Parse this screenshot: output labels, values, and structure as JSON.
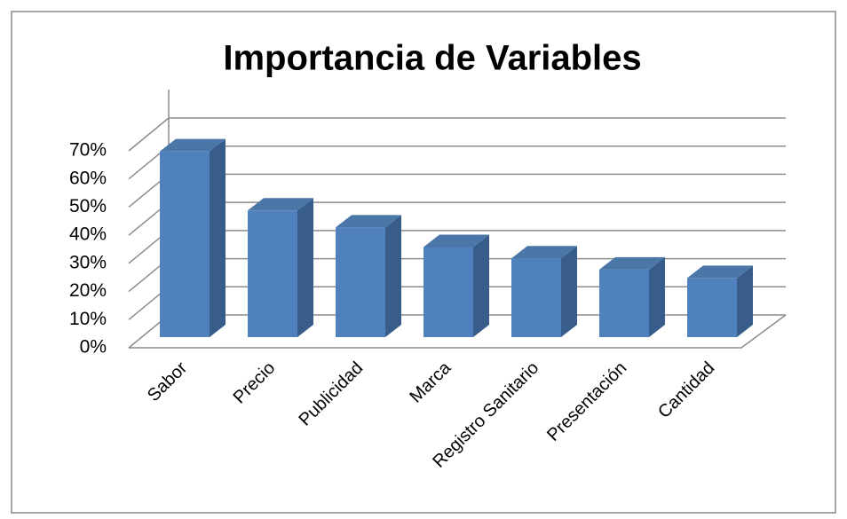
{
  "chart_data": {
    "type": "bar3d",
    "title": "Importancia de Variables",
    "categories": [
      "Sabor",
      "Precio",
      "Publicidad",
      "Marca",
      "Registro Sanitario",
      "Presentación",
      "Cantidad"
    ],
    "values": [
      66,
      45,
      39,
      32,
      28,
      24,
      21
    ],
    "color": "#4f81bd",
    "ylim": [
      0,
      70
    ],
    "yticks": [
      {
        "value": 0,
        "label": "0%"
      },
      {
        "value": 10,
        "label": "10%"
      },
      {
        "value": 20,
        "label": "20%"
      },
      {
        "value": 30,
        "label": "30%"
      },
      {
        "value": 40,
        "label": "40%"
      },
      {
        "value": 50,
        "label": "50%"
      },
      {
        "value": 60,
        "label": "60%"
      },
      {
        "value": 70,
        "label": "70%"
      }
    ],
    "grid": true
  }
}
